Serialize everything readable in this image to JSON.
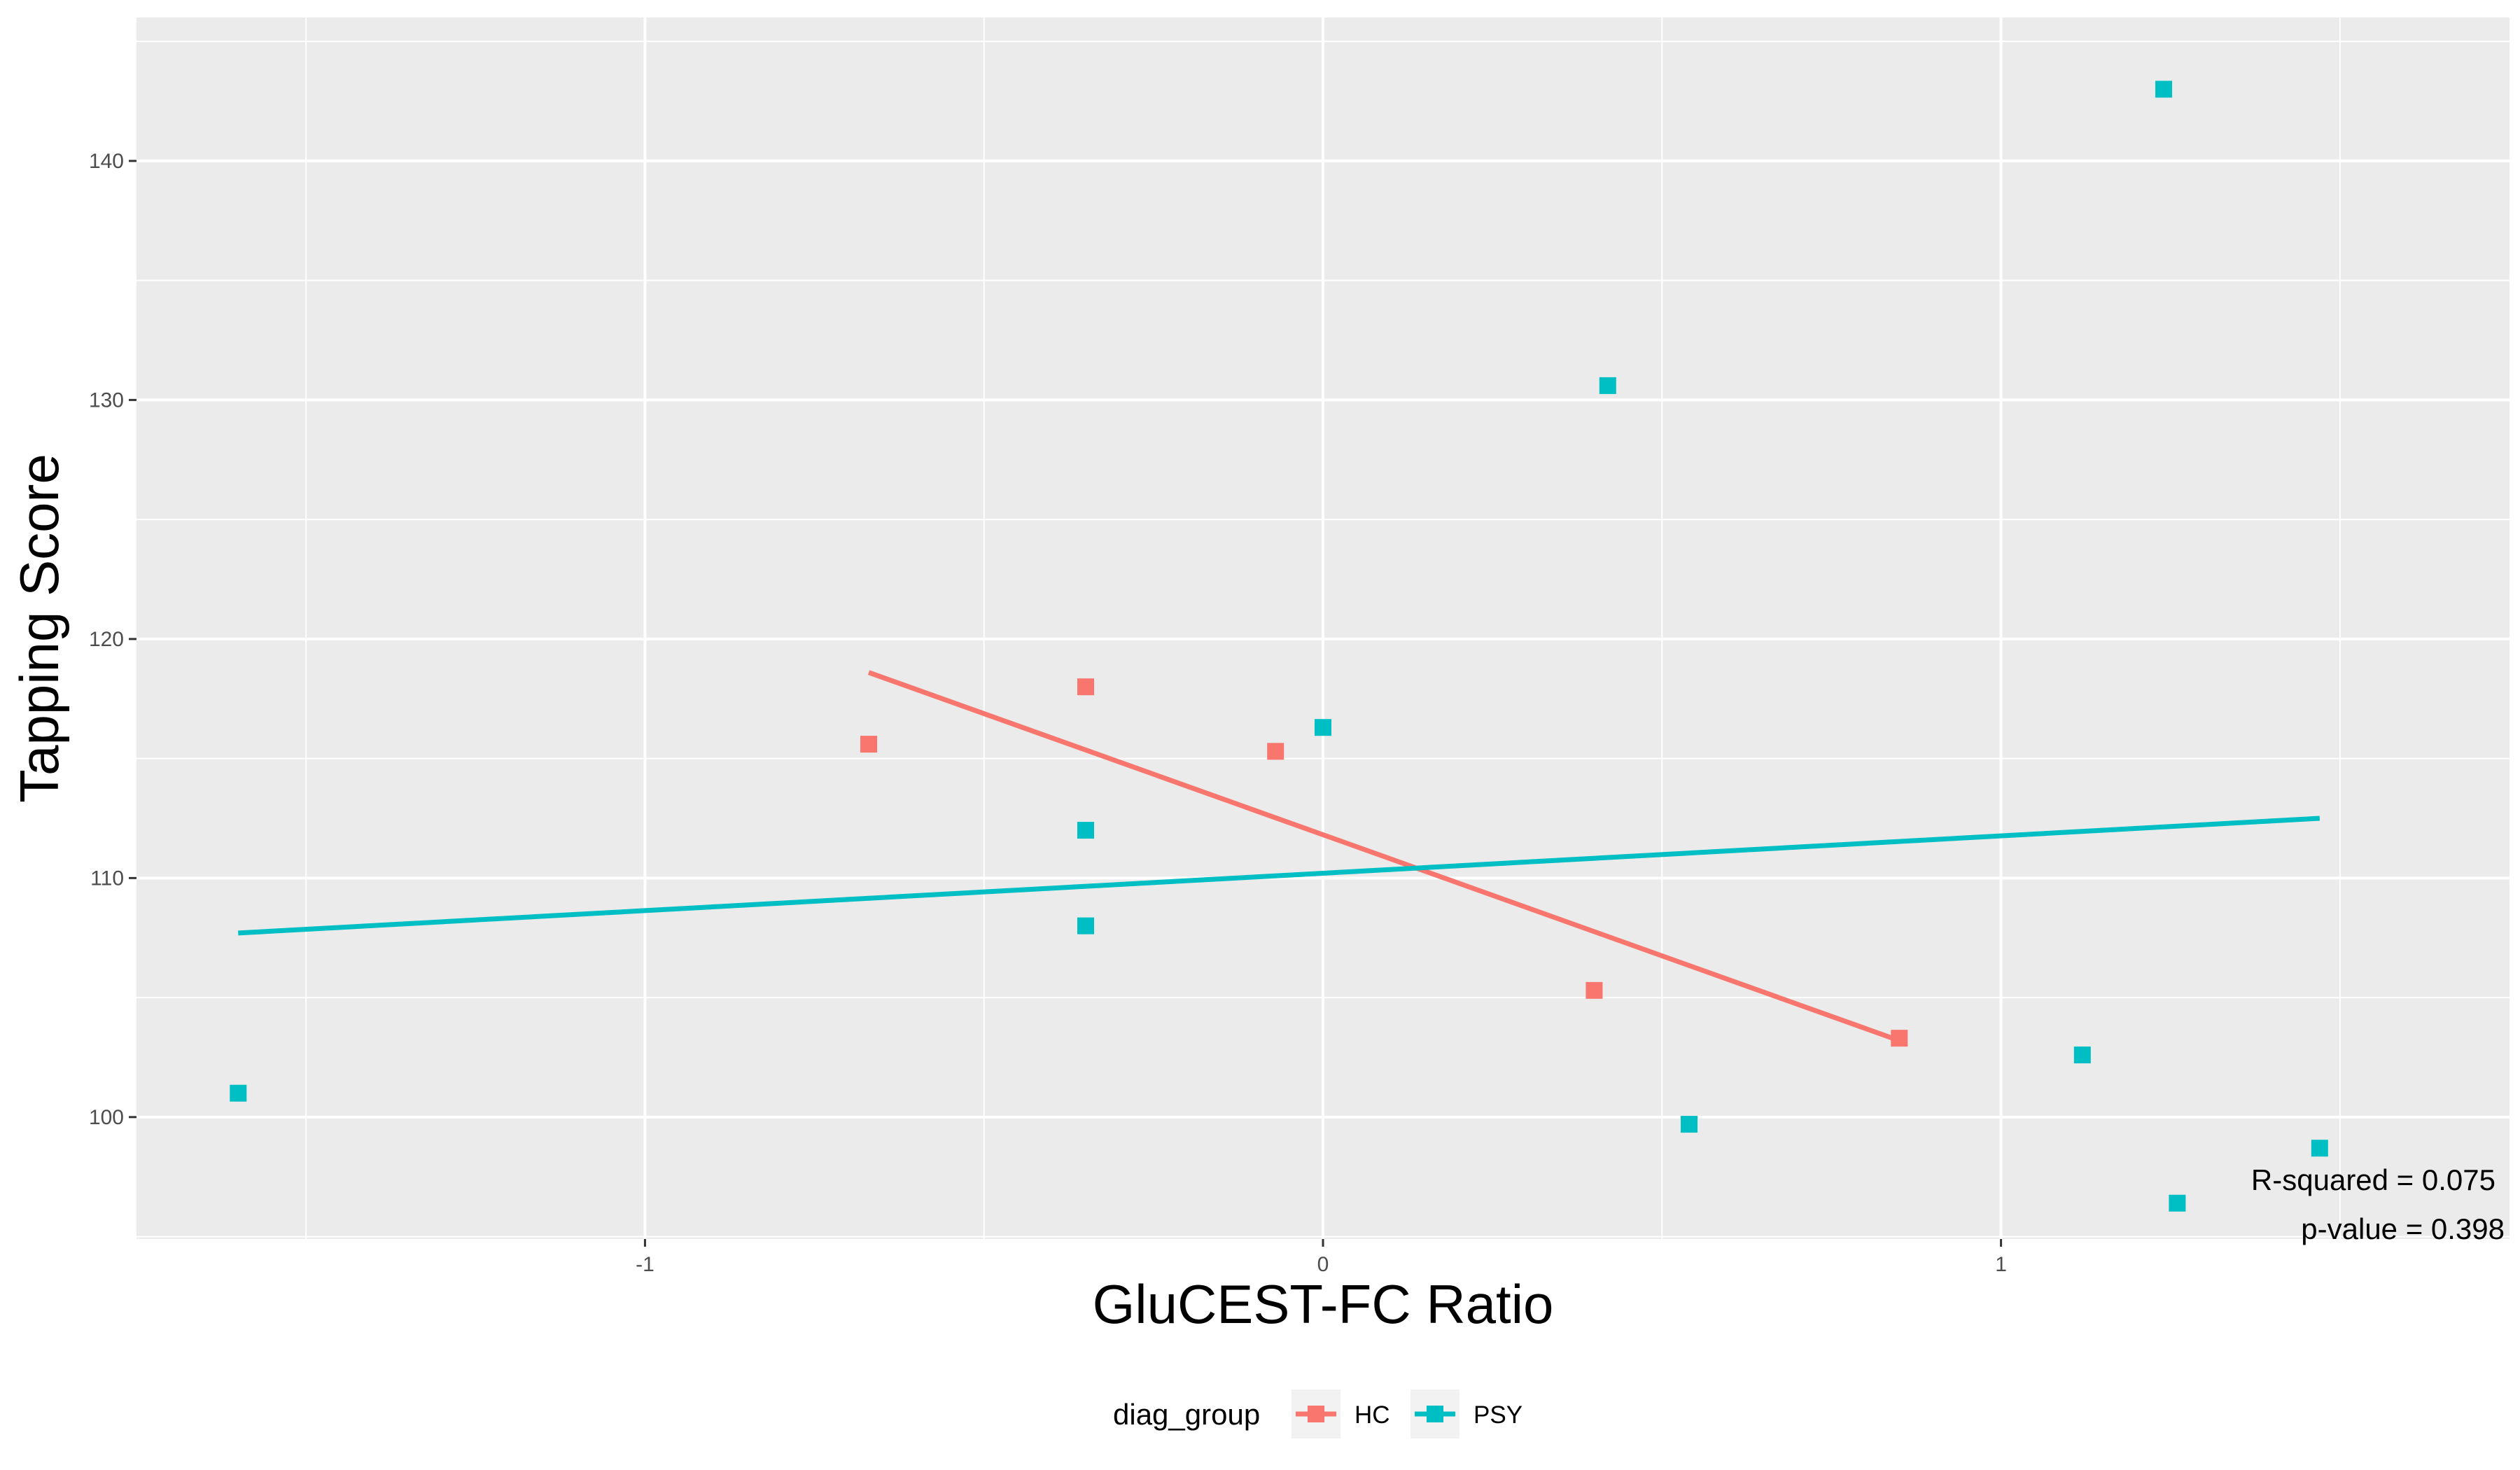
{
  "chart_data": {
    "type": "scatter",
    "xlabel": "GluCEST-FC Ratio",
    "ylabel": "Tapping Score",
    "xlim": [
      -1.75,
      1.75
    ],
    "ylim": [
      94.9,
      146.0
    ],
    "x_ticks": [
      -1,
      0,
      1
    ],
    "x_tick_labels": [
      "-1",
      "0",
      "1"
    ],
    "y_ticks": [
      100,
      110,
      120,
      130,
      140
    ],
    "y_tick_labels": [
      "100",
      "110",
      "120",
      "130",
      "140"
    ],
    "x_minor_ticks": [
      -1.5,
      -0.5,
      0.5,
      1.5
    ],
    "y_minor_ticks": [
      95,
      105,
      115,
      125,
      135,
      145
    ],
    "grid": true,
    "legend": {
      "title": "diag_group",
      "position": "bottom"
    },
    "series": [
      {
        "name": "HC",
        "color": "#F8766D",
        "marker": "square",
        "x": [
          -0.67,
          -0.35,
          -0.07,
          0.4,
          0.85
        ],
        "y": [
          115.6,
          118.0,
          115.3,
          105.3,
          103.3
        ],
        "fit_line": {
          "x": [
            -0.67,
            0.85
          ],
          "y": [
            118.6,
            103.2
          ]
        }
      },
      {
        "name": "PSY",
        "color": "#00BFC4",
        "marker": "square",
        "x": [
          -1.6,
          -0.35,
          -0.35,
          0.0,
          0.42,
          0.54,
          1.12,
          1.24,
          1.26,
          1.47
        ],
        "y": [
          101.0,
          112.0,
          108.0,
          116.3,
          130.6,
          99.7,
          102.6,
          143.0,
          96.4,
          98.7
        ],
        "fit_line": {
          "x": [
            -1.6,
            1.47
          ],
          "y": [
            107.7,
            112.5
          ]
        }
      }
    ],
    "annotations": [
      "R-squared = 0.075",
      "p-value = 0.398"
    ]
  }
}
